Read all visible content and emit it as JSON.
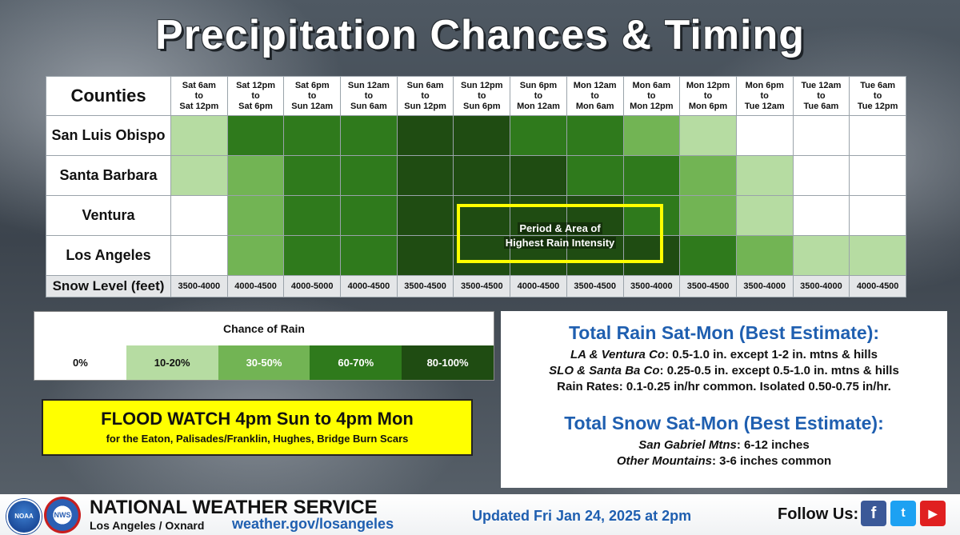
{
  "title": "Precipitation Chances & Timing",
  "table": {
    "corner_label": "Counties",
    "periods": [
      {
        "start": "Sat 6am",
        "mid": "to",
        "end": "Sat 12pm"
      },
      {
        "start": "Sat 12pm",
        "mid": "to",
        "end": "Sat 6pm"
      },
      {
        "start": "Sat 6pm",
        "mid": "to",
        "end": "Sun 12am"
      },
      {
        "start": "Sun 12am",
        "mid": "to",
        "end": "Sun 6am"
      },
      {
        "start": "Sun 6am",
        "mid": "to",
        "end": "Sun 12pm"
      },
      {
        "start": "Sun 12pm",
        "mid": "to",
        "end": "Sun 6pm"
      },
      {
        "start": "Sun 6pm",
        "mid": "to",
        "end": "Mon 12am"
      },
      {
        "start": "Mon 12am",
        "mid": "to",
        "end": "Mon 6am"
      },
      {
        "start": "Mon 6am",
        "mid": "to",
        "end": "Mon 12pm"
      },
      {
        "start": "Mon 12pm",
        "mid": "to",
        "end": "Mon 6pm"
      },
      {
        "start": "Mon 6pm",
        "mid": "to",
        "end": "Tue 12am"
      },
      {
        "start": "Tue 12am",
        "mid": "to",
        "end": "Tue 6am"
      },
      {
        "start": "Tue 6am",
        "mid": "to",
        "end": "Tue 12pm"
      }
    ],
    "rows": [
      {
        "county": "San Luis Obispo",
        "levels": [
          1,
          3,
          3,
          3,
          4,
          4,
          3,
          3,
          2,
          1,
          0,
          0,
          0
        ]
      },
      {
        "county": "Santa Barbara",
        "levels": [
          1,
          2,
          3,
          3,
          4,
          4,
          4,
          3,
          3,
          2,
          1,
          0,
          0
        ]
      },
      {
        "county": "Ventura",
        "levels": [
          0,
          2,
          3,
          3,
          4,
          4,
          4,
          4,
          3,
          2,
          1,
          0,
          0
        ]
      },
      {
        "county": "Los Angeles",
        "levels": [
          0,
          2,
          3,
          3,
          4,
          4,
          4,
          4,
          4,
          3,
          2,
          1,
          1
        ]
      }
    ],
    "snow_label": "Snow Level (feet)",
    "snow_levels": [
      "3500-4000",
      "4000-4500",
      "4000-5000",
      "4000-4500",
      "3500-4500",
      "3500-4500",
      "4000-4500",
      "3500-4500",
      "3500-4000",
      "3500-4500",
      "3500-4000",
      "3500-4000",
      "4000-4500"
    ],
    "highlight_line1": "Period & Area of",
    "highlight_line2": "Highest Rain Intensity",
    "highlight_color": "#ffff00"
  },
  "legend": {
    "title": "Chance of Rain",
    "items": [
      {
        "label": "0%",
        "color": "#ffffff",
        "text_color": "#111111"
      },
      {
        "label": "10-20%",
        "color": "#b6dca2",
        "text_color": "#111111"
      },
      {
        "label": "30-50%",
        "color": "#72b454",
        "text_color": "#ffffff"
      },
      {
        "label": "60-70%",
        "color": "#2f7a1c",
        "text_color": "#ffffff"
      },
      {
        "label": "80-100%",
        "color": "#1f4c12",
        "text_color": "#ffffff"
      }
    ]
  },
  "flood_watch": {
    "main": "FLOOD WATCH 4pm Sun to 4pm Mon",
    "sub": "for the Eaton, Palisades/Franklin, Hughes, Bridge Burn Scars"
  },
  "totals": {
    "rain_heading": "Total Rain Sat-Mon (Best Estimate):",
    "rain_lines": [
      {
        "place": "LA & Ventura Co",
        "text": ": 0.5-1.0 in. except 1-2 in. mtns & hills"
      },
      {
        "place": "SLO & Santa Ba Co",
        "text": ": 0.25-0.5 in. except 0.5-1.0 in. mtns & hills"
      }
    ],
    "rain_rates": "Rain Rates: 0.1-0.25 in/hr common. Isolated 0.50-0.75 in/hr.",
    "snow_heading": "Total Snow Sat-Mon (Best Estimate):",
    "snow_lines": [
      {
        "place": "San Gabriel Mtns",
        "text": ": 6-12 inches"
      },
      {
        "place": "Other Mountains",
        "text": ": 3-6 inches common"
      }
    ]
  },
  "footer": {
    "noaa_logo": "NOAA",
    "nws_logo": "NWS",
    "org_name": "NATIONAL WEATHER SERVICE",
    "office": "Los Angeles / Oxnard",
    "url": "weather.gov/losangeles",
    "updated": "Updated Fri Jan 24, 2025 at 2pm",
    "follow": "Follow Us:",
    "social": [
      {
        "name": "facebook-icon",
        "glyph": "f"
      },
      {
        "name": "twitter-icon",
        "glyph": "t"
      },
      {
        "name": "youtube-icon",
        "glyph": "▶"
      }
    ]
  }
}
